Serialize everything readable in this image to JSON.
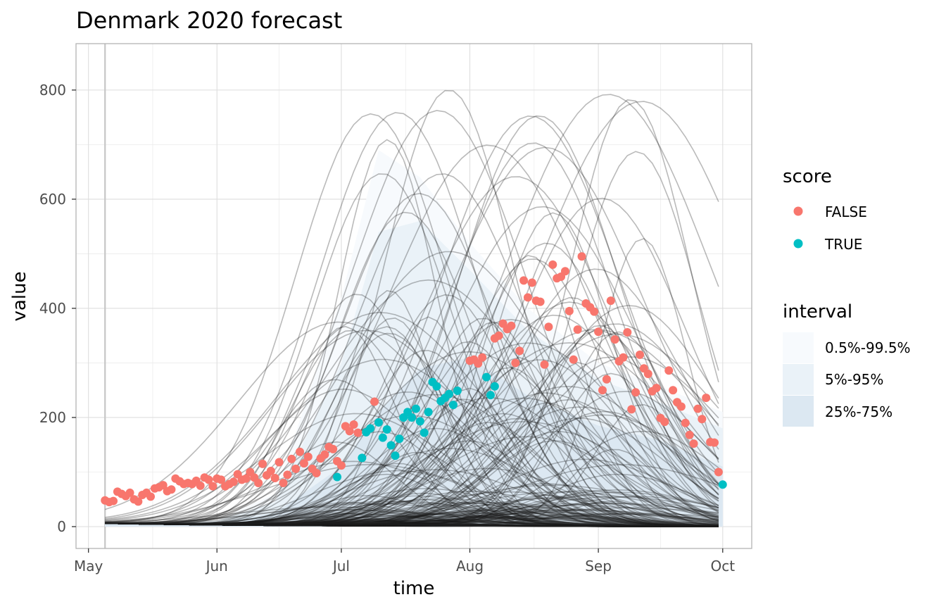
{
  "chart_data": {
    "type": "line",
    "title": "Denmark 2020 forecast",
    "xlabel": "time",
    "ylabel": "value",
    "xlim": [
      "2020-04-28",
      "2020-10-08"
    ],
    "ylim": [
      -40,
      885
    ],
    "x_ticks": [
      {
        "date": "2020-05-01",
        "label": "May"
      },
      {
        "date": "2020-06-01",
        "label": "Jun"
      },
      {
        "date": "2020-07-01",
        "label": "Jul"
      },
      {
        "date": "2020-08-01",
        "label": "Aug"
      },
      {
        "date": "2020-09-01",
        "label": "Sep"
      },
      {
        "date": "2020-10-01",
        "label": "Oct"
      }
    ],
    "y_ticks": [
      0,
      200,
      400,
      600,
      800
    ],
    "forecast_start": "2020-05-05",
    "grid": true,
    "legend_position": "right",
    "score_legend": {
      "title": "score",
      "entries": [
        {
          "label": "FALSE",
          "color": "#F8766D"
        },
        {
          "label": "TRUE",
          "color": "#00BFC4"
        }
      ]
    },
    "interval_legend": {
      "title": "interval",
      "entries": [
        {
          "label": "0.5%-99.5%",
          "color": "#f7fafd"
        },
        {
          "label": "5%-95%",
          "color": "#eaf2f8"
        },
        {
          "label": "25%-75%",
          "color": "#dce8f2"
        }
      ]
    },
    "forecast_summary": {
      "dates": [
        "2020-05-05",
        "2020-06-01",
        "2020-06-15",
        "2020-07-01",
        "2020-07-10",
        "2020-07-20",
        "2020-08-01",
        "2020-08-15",
        "2020-09-01",
        "2020-09-15",
        "2020-10-01"
      ],
      "q005": [
        0,
        0,
        0,
        0,
        0,
        0,
        0,
        0,
        0,
        0,
        0
      ],
      "q995": [
        8,
        12,
        60,
        420,
        690,
        640,
        520,
        400,
        300,
        260,
        210
      ],
      "q05": [
        0,
        0,
        0,
        0,
        0,
        0,
        0,
        0,
        0,
        0,
        0
      ],
      "q95": [
        6,
        10,
        45,
        300,
        540,
        560,
        470,
        360,
        270,
        230,
        180
      ],
      "q25": [
        0,
        0,
        0,
        0,
        0,
        0,
        0,
        0,
        0,
        0,
        0
      ],
      "q75": [
        5,
        8,
        25,
        110,
        210,
        290,
        310,
        240,
        185,
        160,
        110
      ],
      "median": [
        2,
        3,
        5,
        20,
        45,
        55,
        55,
        45,
        30,
        20,
        10
      ]
    },
    "observations": {
      "FALSE": [
        [
          "2020-05-05",
          48
        ],
        [
          "2020-05-06",
          45
        ],
        [
          "2020-05-07",
          47
        ],
        [
          "2020-05-08",
          64
        ],
        [
          "2020-05-09",
          60
        ],
        [
          "2020-05-10",
          56
        ],
        [
          "2020-05-11",
          62
        ],
        [
          "2020-05-12",
          50
        ],
        [
          "2020-05-13",
          46
        ],
        [
          "2020-05-14",
          58
        ],
        [
          "2020-05-15",
          62
        ],
        [
          "2020-05-16",
          55
        ],
        [
          "2020-05-17",
          70
        ],
        [
          "2020-05-18",
          72
        ],
        [
          "2020-05-19",
          76
        ],
        [
          "2020-05-20",
          65
        ],
        [
          "2020-05-21",
          68
        ],
        [
          "2020-05-22",
          88
        ],
        [
          "2020-05-23",
          83
        ],
        [
          "2020-05-24",
          78
        ],
        [
          "2020-05-25",
          80
        ],
        [
          "2020-05-26",
          78
        ],
        [
          "2020-05-27",
          84
        ],
        [
          "2020-05-28",
          75
        ],
        [
          "2020-05-29",
          90
        ],
        [
          "2020-05-30",
          86
        ],
        [
          "2020-05-31",
          74
        ],
        [
          "2020-06-01",
          88
        ],
        [
          "2020-06-02",
          86
        ],
        [
          "2020-06-03",
          74
        ],
        [
          "2020-06-04",
          78
        ],
        [
          "2020-06-05",
          82
        ],
        [
          "2020-06-06",
          96
        ],
        [
          "2020-06-07",
          86
        ],
        [
          "2020-06-08",
          88
        ],
        [
          "2020-06-09",
          100
        ],
        [
          "2020-06-10",
          90
        ],
        [
          "2020-06-11",
          80
        ],
        [
          "2020-06-12",
          115
        ],
        [
          "2020-06-13",
          94
        ],
        [
          "2020-06-14",
          102
        ],
        [
          "2020-06-15",
          89
        ],
        [
          "2020-06-16",
          118
        ],
        [
          "2020-06-17",
          80
        ],
        [
          "2020-06-18",
          95
        ],
        [
          "2020-06-19",
          124
        ],
        [
          "2020-06-20",
          106
        ],
        [
          "2020-06-21",
          137
        ],
        [
          "2020-06-22",
          116
        ],
        [
          "2020-06-23",
          128
        ],
        [
          "2020-06-24",
          106
        ],
        [
          "2020-06-25",
          98
        ],
        [
          "2020-06-26",
          125
        ],
        [
          "2020-06-27",
          132
        ],
        [
          "2020-06-28",
          146
        ],
        [
          "2020-06-29",
          142
        ],
        [
          "2020-06-30",
          120
        ],
        [
          "2020-07-01",
          112
        ],
        [
          "2020-07-02",
          184
        ],
        [
          "2020-07-03",
          175
        ],
        [
          "2020-07-04",
          187
        ],
        [
          "2020-07-05",
          172
        ],
        [
          "2020-07-09",
          229
        ],
        [
          "2020-08-01",
          304
        ],
        [
          "2020-08-02",
          306
        ],
        [
          "2020-08-03",
          299
        ],
        [
          "2020-08-04",
          310
        ],
        [
          "2020-08-07",
          345
        ],
        [
          "2020-08-08",
          350
        ],
        [
          "2020-08-09",
          372
        ],
        [
          "2020-08-10",
          362
        ],
        [
          "2020-08-11",
          368
        ],
        [
          "2020-08-12",
          300
        ],
        [
          "2020-08-13",
          322
        ],
        [
          "2020-08-14",
          451
        ],
        [
          "2020-08-15",
          420
        ],
        [
          "2020-08-16",
          447
        ],
        [
          "2020-08-17",
          414
        ],
        [
          "2020-08-18",
          412
        ],
        [
          "2020-08-19",
          297
        ],
        [
          "2020-08-20",
          366
        ],
        [
          "2020-08-21",
          480
        ],
        [
          "2020-08-22",
          455
        ],
        [
          "2020-08-23",
          458
        ],
        [
          "2020-08-24",
          468
        ],
        [
          "2020-08-25",
          395
        ],
        [
          "2020-08-26",
          306
        ],
        [
          "2020-08-27",
          361
        ],
        [
          "2020-08-28",
          495
        ],
        [
          "2020-08-29",
          409
        ],
        [
          "2020-08-30",
          402
        ],
        [
          "2020-08-31",
          394
        ],
        [
          "2020-09-01",
          357
        ],
        [
          "2020-09-02",
          250
        ],
        [
          "2020-09-03",
          270
        ],
        [
          "2020-09-04",
          414
        ],
        [
          "2020-09-05",
          343
        ],
        [
          "2020-09-06",
          303
        ],
        [
          "2020-09-07",
          310
        ],
        [
          "2020-09-08",
          356
        ],
        [
          "2020-09-09",
          215
        ],
        [
          "2020-09-10",
          246
        ],
        [
          "2020-09-11",
          315
        ],
        [
          "2020-09-12",
          290
        ],
        [
          "2020-09-13",
          280
        ],
        [
          "2020-09-14",
          248
        ],
        [
          "2020-09-15",
          254
        ],
        [
          "2020-09-16",
          199
        ],
        [
          "2020-09-17",
          192
        ],
        [
          "2020-09-18",
          286
        ],
        [
          "2020-09-19",
          250
        ],
        [
          "2020-09-20",
          228
        ],
        [
          "2020-09-21",
          220
        ],
        [
          "2020-09-22",
          190
        ],
        [
          "2020-09-23",
          168
        ],
        [
          "2020-09-24",
          152
        ],
        [
          "2020-09-25",
          216
        ],
        [
          "2020-09-26",
          197
        ],
        [
          "2020-09-27",
          236
        ],
        [
          "2020-09-28",
          155
        ],
        [
          "2020-09-29",
          154
        ],
        [
          "2020-09-30",
          100
        ]
      ],
      "TRUE": [
        [
          "2020-06-30",
          91
        ],
        [
          "2020-07-06",
          126
        ],
        [
          "2020-07-07",
          173
        ],
        [
          "2020-07-08",
          180
        ],
        [
          "2020-07-10",
          191
        ],
        [
          "2020-07-11",
          163
        ],
        [
          "2020-07-12",
          178
        ],
        [
          "2020-07-13",
          149
        ],
        [
          "2020-07-14",
          130
        ],
        [
          "2020-07-15",
          161
        ],
        [
          "2020-07-16",
          200
        ],
        [
          "2020-07-17",
          210
        ],
        [
          "2020-07-18",
          200
        ],
        [
          "2020-07-19",
          216
        ],
        [
          "2020-07-20",
          193
        ],
        [
          "2020-07-21",
          172
        ],
        [
          "2020-07-22",
          210
        ],
        [
          "2020-07-23",
          265
        ],
        [
          "2020-07-24",
          257
        ],
        [
          "2020-07-25",
          230
        ],
        [
          "2020-07-26",
          236
        ],
        [
          "2020-07-27",
          243
        ],
        [
          "2020-07-28",
          223
        ],
        [
          "2020-07-29",
          249
        ],
        [
          "2020-08-05",
          274
        ],
        [
          "2020-08-06",
          241
        ],
        [
          "2020-08-07",
          257
        ],
        [
          "2020-10-01",
          77
        ]
      ]
    }
  }
}
